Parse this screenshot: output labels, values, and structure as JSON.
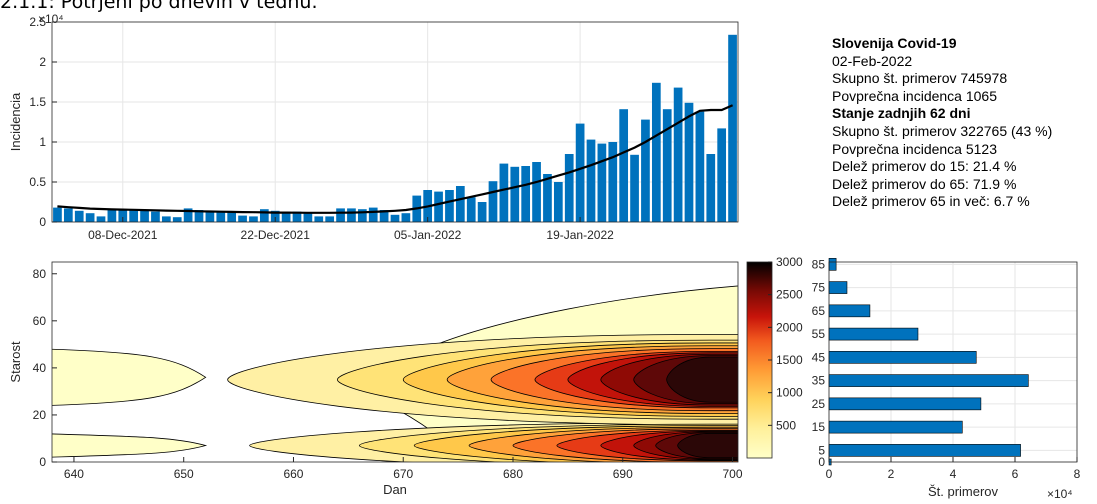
{
  "heading": "2.1.1: Potrjeni po dnevih v tednu.",
  "colors": {
    "bar": "#0072BD",
    "line": "#000000",
    "grid": "#e6e6e6",
    "axis": "#262626"
  },
  "stats": {
    "title": "Slovenija Covid-19",
    "date": "02-Feb-2022",
    "total": "Skupno št. primerov 745978",
    "avg": "Povprečna incidenca 1065",
    "subtitle": "Stanje zadnjih 62 dni",
    "total_recent": "Skupno št. primerov 322765 (43 %)",
    "avg_recent": "Povprečna incidenca 5123",
    "share15": "Delež primerov do 15: 21.4 %",
    "share65": "Delež primerov do 65: 71.9 %",
    "share65plus": "Delež primerov 65 in več: 6.7 %"
  },
  "chart_data": [
    {
      "type": "bar",
      "ylabel": "Incidencia",
      "exponent_label": "×10⁴",
      "ylim": [
        0,
        25000
      ],
      "yticks": [
        0,
        5000,
        10000,
        15000,
        20000,
        25000
      ],
      "ytick_labels": [
        "0",
        "0.5",
        "1",
        "1.5",
        "2",
        "2.5"
      ],
      "xticks": [
        {
          "index": 6,
          "label": "08-Dec-2021"
        },
        {
          "index": 20,
          "label": "22-Dec-2021"
        },
        {
          "index": 34,
          "label": "05-Jan-2022"
        },
        {
          "index": 48,
          "label": "19-Jan-2022"
        }
      ],
      "grid": true,
      "series": [
        {
          "kind": "bar",
          "values": [
            1800,
            1700,
            1400,
            1100,
            700,
            1600,
            1600,
            1500,
            1400,
            1300,
            700,
            600,
            1700,
            1500,
            1400,
            1300,
            1300,
            800,
            700,
            1600,
            1400,
            1300,
            1300,
            1200,
            700,
            700,
            1700,
            1700,
            1600,
            1800,
            1500,
            900,
            1100,
            3300,
            4000,
            3800,
            4000,
            4500,
            3100,
            2500,
            5100,
            7300,
            6900,
            7000,
            7500,
            6000,
            5000,
            8500,
            12300,
            10300,
            9800,
            10000,
            14100,
            8400,
            12800,
            17400,
            14100,
            16800,
            14900,
            13800,
            8500,
            11700,
            23400
          ]
        },
        {
          "kind": "line",
          "values": [
            1950,
            1850,
            1760,
            1680,
            1620,
            1580,
            1550,
            1520,
            1490,
            1460,
            1430,
            1400,
            1370,
            1340,
            1310,
            1290,
            1260,
            1240,
            1220,
            1200,
            1180,
            1170,
            1160,
            1150,
            1150,
            1150,
            1160,
            1180,
            1210,
            1260,
            1320,
            1400,
            1500,
            1700,
            1950,
            2250,
            2550,
            2850,
            3150,
            3450,
            3750,
            4050,
            4350,
            4650,
            5000,
            5400,
            5800,
            6200,
            6650,
            7100,
            7600,
            8100,
            8700,
            9300,
            10000,
            10800,
            11600,
            12400,
            13200,
            13900,
            14000,
            14000,
            14600
          ]
        }
      ]
    },
    {
      "type": "heatmap",
      "subtype": "filled-contour",
      "xlabel": "Dan",
      "ylabel": "Starost",
      "xlim": [
        638,
        700.5
      ],
      "ylim": [
        0,
        85
      ],
      "xticks": [
        640,
        650,
        660,
        670,
        680,
        690,
        700
      ],
      "yticks": [
        0,
        20,
        40,
        60,
        80
      ],
      "colorbar_ticks": [
        500,
        1000,
        1500,
        2000,
        2500,
        3000
      ],
      "colorbar_range": [
        0,
        3000
      ],
      "peaks": [
        {
          "x": 696,
          "age": 7
        },
        {
          "x": 696,
          "age": 35
        }
      ],
      "levels": [
        {
          "value": 250,
          "color": "#ffffc8",
          "blobs": [
            [
              7,
              1.6,
              72
            ],
            [
              35,
              1.7,
              75
            ]
          ]
        },
        {
          "value": 500,
          "color": "#fff0a4",
          "blobs": [
            [
              7,
              1.5,
              42
            ],
            [
              35,
              1.6,
              44
            ]
          ]
        },
        {
          "value": 750,
          "color": "#ffe377",
          "blobs": [
            [
              7,
              1.4,
              32
            ],
            [
              35,
              1.4,
              34
            ]
          ]
        },
        {
          "value": 1000,
          "color": "#ffc84a",
          "blobs": [
            [
              7,
              1.3,
              27
            ],
            [
              35,
              1.3,
              28
            ]
          ]
        },
        {
          "value": 1250,
          "color": "#ffa23a",
          "blobs": [
            [
              7,
              1.2,
              22
            ],
            [
              35,
              1.2,
              24
            ]
          ]
        },
        {
          "value": 1500,
          "color": "#fb7328",
          "blobs": [
            [
              7,
              1.1,
              18
            ],
            [
              35,
              1.1,
              20
            ]
          ]
        },
        {
          "value": 1750,
          "color": "#e63b16",
          "blobs": [
            [
              7,
              1.0,
              14
            ],
            [
              35,
              1.0,
              16
            ]
          ]
        },
        {
          "value": 2000,
          "color": "#c2130a",
          "blobs": [
            [
              7,
              0.95,
              10
            ],
            [
              35,
              0.95,
              13
            ]
          ]
        },
        {
          "value": 2250,
          "color": "#8f0a05",
          "blobs": [
            [
              7,
              0.9,
              7
            ],
            [
              35,
              0.9,
              10
            ]
          ]
        },
        {
          "value": 2500,
          "color": "#5e0808",
          "blobs": [
            [
              7,
              0.85,
              5
            ],
            [
              35,
              0.85,
              7
            ]
          ]
        },
        {
          "value": 2750,
          "color": "#2b0707",
          "blobs": [
            [
              7,
              0.8,
              3
            ],
            [
              35,
              0.8,
              4
            ]
          ]
        }
      ],
      "early_blobs": [
        {
          "age_lo": 24,
          "age_hi": 48,
          "x_end": 652
        },
        {
          "age_lo": 2,
          "age_hi": 12,
          "x_end": 652
        }
      ]
    },
    {
      "type": "bar",
      "orientation": "horizontal",
      "xlabel": "Št. primerov",
      "exponent_label": "×10⁴",
      "categories": [
        "0",
        "5",
        "15",
        "25",
        "35",
        "45",
        "55",
        "65",
        "75",
        "85"
      ],
      "values": [
        700,
        61800,
        43000,
        49000,
        64300,
        47500,
        28700,
        13200,
        5800,
        2300
      ],
      "xlim": [
        0,
        80000
      ],
      "xticks": [
        0,
        20000,
        40000,
        60000,
        80000
      ],
      "xtick_labels": [
        "0",
        "2",
        "4",
        "6",
        "8"
      ],
      "grid": true
    }
  ]
}
